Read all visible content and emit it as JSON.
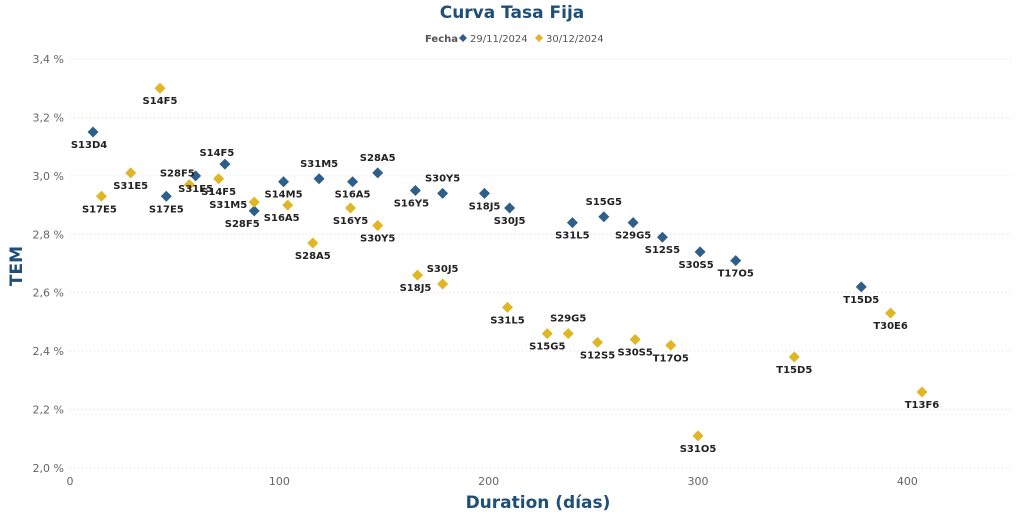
{
  "chart_data": {
    "type": "scatter",
    "title": "Curva Tasa Fija",
    "xlabel": "Duration (días)",
    "ylabel": "TEM",
    "xlim": [
      0,
      450
    ],
    "ylim": [
      2.0,
      3.4
    ],
    "xticks": [
      0,
      100,
      200,
      300,
      400
    ],
    "yticks": [
      2.0,
      2.2,
      2.4,
      2.6,
      2.8,
      3.0,
      3.2,
      3.4
    ],
    "ytick_suffix": " %",
    "grid": true,
    "legend": {
      "title": "Fecha",
      "position": "top-center"
    },
    "series": [
      {
        "name": "29/11/2024",
        "color": "#2e5f8a",
        "marker": "diamond",
        "points": [
          {
            "label": "S13D4",
            "x": 11,
            "y": 3.15
          },
          {
            "label": "S17E5",
            "x": 46,
            "y": 2.93
          },
          {
            "label": "S31E5",
            "x": 60,
            "y": 3.0
          },
          {
            "label": "S14F5",
            "x": 74,
            "y": 3.04
          },
          {
            "label": "S28F5",
            "x": 88,
            "y": 2.88
          },
          {
            "label": "S14M5",
            "x": 102,
            "y": 2.98
          },
          {
            "label": "S31M5",
            "x": 119,
            "y": 2.99
          },
          {
            "label": "S16A5",
            "x": 135,
            "y": 2.98
          },
          {
            "label": "S28A5",
            "x": 147,
            "y": 3.01
          },
          {
            "label": "S16Y5",
            "x": 165,
            "y": 2.95
          },
          {
            "label": "S30Y5",
            "x": 178,
            "y": 2.94
          },
          {
            "label": "S18J5",
            "x": 198,
            "y": 2.94
          },
          {
            "label": "S30J5",
            "x": 210,
            "y": 2.89
          },
          {
            "label": "S31L5",
            "x": 240,
            "y": 2.84
          },
          {
            "label": "S15G5",
            "x": 255,
            "y": 2.86
          },
          {
            "label": "S29G5",
            "x": 269,
            "y": 2.84
          },
          {
            "label": "S12S5",
            "x": 283,
            "y": 2.79
          },
          {
            "label": "S30S5",
            "x": 301,
            "y": 2.74
          },
          {
            "label": "T17O5",
            "x": 318,
            "y": 2.71
          },
          {
            "label": "T15D5",
            "x": 378,
            "y": 2.62
          }
        ]
      },
      {
        "name": "30/12/2024",
        "color": "#e0b625",
        "marker": "diamond",
        "points": [
          {
            "label": "S14F5",
            "x": 43,
            "y": 3.3
          },
          {
            "label": "S17E5",
            "x": 15,
            "y": 2.93
          },
          {
            "label": "S31E5",
            "x": 29,
            "y": 3.01
          },
          {
            "label": "S28F5",
            "x": 57,
            "y": 2.97
          },
          {
            "label": "S14F5",
            "x": 71,
            "y": 2.99
          },
          {
            "label": "S31M5",
            "x": 88,
            "y": 2.91
          },
          {
            "label": "S16A5",
            "x": 104,
            "y": 2.9
          },
          {
            "label": "S28A5",
            "x": 116,
            "y": 2.77
          },
          {
            "label": "S16Y5",
            "x": 134,
            "y": 2.89
          },
          {
            "label": "S30Y5",
            "x": 147,
            "y": 2.83
          },
          {
            "label": "S18J5",
            "x": 166,
            "y": 2.66
          },
          {
            "label": "S30J5",
            "x": 178,
            "y": 2.63
          },
          {
            "label": "S31L5",
            "x": 209,
            "y": 2.55
          },
          {
            "label": "S15G5",
            "x": 228,
            "y": 2.46
          },
          {
            "label": "S29G5",
            "x": 238,
            "y": 2.46
          },
          {
            "label": "S12S5",
            "x": 252,
            "y": 2.43
          },
          {
            "label": "S30S5",
            "x": 270,
            "y": 2.44
          },
          {
            "label": "T17O5",
            "x": 287,
            "y": 2.42
          },
          {
            "label": "S31O5",
            "x": 300,
            "y": 2.11
          },
          {
            "label": "T15D5",
            "x": 346,
            "y": 2.38
          },
          {
            "label": "T30E6",
            "x": 392,
            "y": 2.53
          },
          {
            "label": "T13F6",
            "x": 407,
            "y": 2.26
          }
        ]
      }
    ]
  }
}
